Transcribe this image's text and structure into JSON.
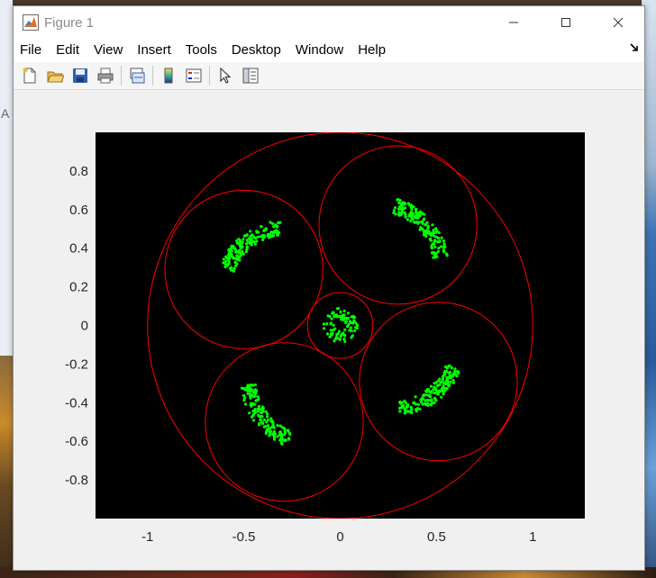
{
  "window": {
    "title": "Figure 1",
    "controls": [
      "minimize-icon",
      "maximize-icon",
      "close-icon"
    ]
  },
  "menu": {
    "items": [
      "File",
      "Edit",
      "View",
      "Insert",
      "Tools",
      "Desktop",
      "Window",
      "Help"
    ]
  },
  "toolbar": {
    "buttons": [
      "new-figure-icon",
      "open-file-icon",
      "save-icon",
      "print-icon",
      "link-plot-icon",
      "insert-colorbar-icon",
      "insert-legend-icon",
      "edit-plot-pointer-icon",
      "property-inspector-icon"
    ]
  },
  "desktop": {
    "stray_text": "A"
  },
  "plot": {
    "background": "#000000",
    "circle_color": "#ff0000",
    "point_color": "#00ff00",
    "xticks": [
      "-1",
      "-0.5",
      "0",
      "0.5",
      "1"
    ],
    "xtick_values": [
      -1,
      -0.5,
      0,
      0.5,
      1
    ],
    "yticks": [
      "0.8",
      "0.6",
      "0.4",
      "0.2",
      "0",
      "-0.2",
      "-0.4",
      "-0.6",
      "-0.8"
    ],
    "ytick_values": [
      0.8,
      0.6,
      0.4,
      0.2,
      0,
      -0.2,
      -0.4,
      -0.6,
      -0.8
    ],
    "xlim": [
      -1.27,
      1.27
    ],
    "ylim": [
      -1.0,
      1.0
    ]
  },
  "chart_data": {
    "type": "scatter",
    "title": "",
    "xlabel": "",
    "ylabel": "",
    "xlim": [
      -1.27,
      1.27
    ],
    "ylim": [
      -1.0,
      1.0
    ],
    "circles": [
      {
        "cx": 0.0,
        "cy": 0.0,
        "r": 1.0
      },
      {
        "cx": 0.0,
        "cy": 0.0,
        "r": 0.17
      },
      {
        "cx": 0.3,
        "cy": 0.52,
        "r": 0.41
      },
      {
        "cx": -0.5,
        "cy": 0.29,
        "r": 0.41
      },
      {
        "cx": -0.29,
        "cy": -0.5,
        "r": 0.41
      },
      {
        "cx": 0.51,
        "cy": -0.29,
        "r": 0.41
      }
    ],
    "point_clusters": [
      {
        "cx": 0.2,
        "cy": 0.3,
        "r": 0.36,
        "a0": 75,
        "a1": 10
      },
      {
        "cx": -0.28,
        "cy": 0.18,
        "r": 0.36,
        "a0": 160,
        "a1": 95
      },
      {
        "cx": -0.15,
        "cy": -0.28,
        "r": 0.36,
        "a0": 250,
        "a1": 185
      },
      {
        "cx": 0.28,
        "cy": -0.1,
        "r": 0.36,
        "a0": 340,
        "a1": 275
      },
      {
        "cx": 0.0,
        "cy": 0.0,
        "r": 0.09,
        "a0": 0,
        "a1": 360
      }
    ]
  }
}
